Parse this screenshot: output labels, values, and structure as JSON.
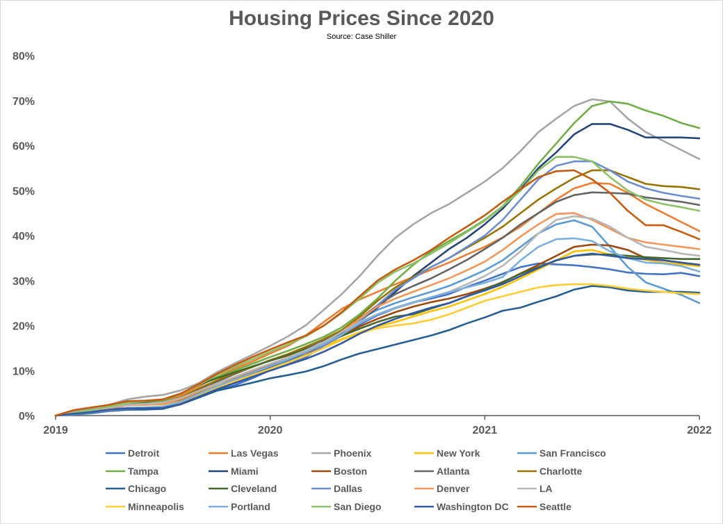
{
  "chart_data": {
    "type": "line",
    "title": "Housing Prices Since 2020",
    "subtitle": "Source: Case Shiller",
    "xlabel": "",
    "ylabel": "",
    "x_ticks": [
      "2019",
      "2020",
      "2021",
      "2022"
    ],
    "y_ticks": [
      "0%",
      "10%",
      "20%",
      "30%",
      "40%",
      "50%",
      "60%",
      "70%",
      "80%"
    ],
    "ylim": [
      0,
      80
    ],
    "xlim": [
      0,
      36
    ],
    "grid": false,
    "legend_position": "bottom",
    "series": [
      {
        "name": "Detroit",
        "color": "#4472c4",
        "values": [
          0,
          0.4,
          0.8,
          1.4,
          1.7,
          1.5,
          1.6,
          2.5,
          4.2,
          5.6,
          6.7,
          8.3,
          10.1,
          11.6,
          13.0,
          15.5,
          17.8,
          20.2,
          22.3,
          23.8,
          25.1,
          26.0,
          27.0,
          28.6,
          30.0,
          31.5,
          33.0,
          33.8,
          33.6,
          33.4,
          33.0,
          32.5,
          31.8,
          31.5,
          31.4,
          31.7,
          31.0
        ]
      },
      {
        "name": "Las Vegas",
        "color": "#ed7d31",
        "values": [
          0,
          1.0,
          1.6,
          2.2,
          2.7,
          2.9,
          3.2,
          4.4,
          6.5,
          8.5,
          10.4,
          12.0,
          13.8,
          15.5,
          17.8,
          20.8,
          23.7,
          25.8,
          27.5,
          29.2,
          30.8,
          32.4,
          34.0,
          35.8,
          37.5,
          39.6,
          42.0,
          45.0,
          48.0,
          50.5,
          51.7,
          51.5,
          49.5,
          47.0,
          45.0,
          43.0,
          41.0
        ]
      },
      {
        "name": "Phoenix",
        "color": "#a5a5a5",
        "values": [
          0,
          1.0,
          1.6,
          2.4,
          3.6,
          4.2,
          4.6,
          5.6,
          7.2,
          9.6,
          11.6,
          13.5,
          15.5,
          17.6,
          20.1,
          23.5,
          27.0,
          31.0,
          35.5,
          39.5,
          42.5,
          45.0,
          47.0,
          49.5,
          52.0,
          55.0,
          58.8,
          63.0,
          66.0,
          68.8,
          70.3,
          69.8,
          66.0,
          63.0,
          61.0,
          59.0,
          57.0
        ]
      },
      {
        "name": "New York",
        "color": "#ffc000",
        "values": [
          0,
          0.6,
          1.2,
          2.0,
          2.4,
          2.5,
          2.5,
          3.5,
          5.0,
          6.5,
          7.8,
          9.0,
          10.5,
          11.8,
          13.5,
          15.5,
          17.0,
          18.5,
          19.8,
          20.8,
          22.0,
          23.2,
          24.2,
          25.6,
          27.0,
          28.6,
          30.5,
          32.5,
          34.5,
          36.5,
          36.8,
          35.8,
          35.2,
          34.6,
          34.0,
          33.6,
          33.2
        ]
      },
      {
        "name": "San Francisco",
        "color": "#5b9bd5",
        "values": [
          0,
          0.2,
          0.5,
          1.0,
          1.3,
          1.3,
          1.5,
          2.8,
          4.5,
          6.0,
          7.4,
          8.8,
          10.5,
          12.0,
          14.0,
          16.5,
          19.0,
          21.5,
          23.5,
          25.0,
          26.3,
          27.5,
          28.8,
          30.5,
          32.3,
          34.5,
          37.5,
          40.5,
          42.5,
          43.4,
          42.0,
          37.5,
          33.0,
          29.6,
          28.2,
          26.8,
          25.0
        ]
      },
      {
        "name": "Tampa",
        "color": "#70ad47",
        "values": [
          0,
          0.5,
          1.0,
          1.8,
          2.8,
          3.0,
          3.3,
          4.8,
          6.8,
          8.5,
          10.0,
          11.5,
          13.0,
          14.4,
          15.9,
          17.5,
          19.6,
          22.5,
          26.0,
          30.0,
          33.5,
          36.5,
          38.8,
          41.0,
          43.5,
          46.5,
          51.0,
          56.0,
          60.5,
          65.0,
          68.8,
          69.8,
          69.3,
          67.8,
          66.6,
          65.0,
          63.9
        ]
      },
      {
        "name": "Miami",
        "color": "#264478",
        "values": [
          0,
          0.4,
          0.8,
          1.3,
          1.7,
          1.8,
          2.0,
          3.0,
          4.7,
          6.4,
          7.8,
          9.3,
          10.9,
          12.4,
          14.0,
          16.0,
          18.2,
          21.0,
          24.0,
          27.5,
          31.0,
          34.0,
          37.0,
          39.5,
          42.5,
          46.0,
          50.3,
          55.0,
          58.5,
          62.5,
          64.8,
          64.8,
          63.5,
          61.8,
          61.8,
          61.8,
          61.6
        ]
      },
      {
        "name": "Boston",
        "color": "#9e480e",
        "values": [
          0,
          0.6,
          1.2,
          1.8,
          2.3,
          2.4,
          2.6,
          3.6,
          5.3,
          7.0,
          8.4,
          9.7,
          11.1,
          12.5,
          14.0,
          15.6,
          17.8,
          19.8,
          21.5,
          23.0,
          24.2,
          25.2,
          26.0,
          27.0,
          28.2,
          29.6,
          31.6,
          33.5,
          35.5,
          37.5,
          38.0,
          37.8,
          36.8,
          35.0,
          34.5,
          34.0,
          33.5
        ]
      },
      {
        "name": "Atlanta",
        "color": "#636363",
        "values": [
          0,
          0.5,
          1.0,
          1.6,
          2.3,
          2.5,
          2.7,
          3.8,
          5.7,
          7.5,
          9.2,
          10.8,
          12.3,
          13.6,
          15.1,
          16.8,
          18.8,
          21.5,
          24.5,
          27.0,
          28.8,
          30.5,
          32.5,
          34.6,
          37.0,
          39.5,
          42.5,
          45.0,
          47.5,
          49.0,
          49.6,
          49.5,
          49.3,
          48.5,
          48.0,
          47.5,
          46.8
        ]
      },
      {
        "name": "Charlotte",
        "color": "#997300",
        "values": [
          0,
          0.5,
          1.1,
          1.7,
          2.4,
          2.6,
          2.9,
          4.0,
          6.0,
          7.8,
          9.4,
          10.8,
          12.3,
          13.7,
          15.3,
          17.0,
          19.0,
          22.0,
          25.5,
          28.5,
          30.8,
          33.0,
          35.0,
          37.3,
          39.5,
          42.0,
          45.0,
          48.0,
          50.5,
          52.8,
          54.5,
          54.5,
          53.0,
          51.5,
          51.0,
          50.8,
          50.3
        ]
      },
      {
        "name": "Chicago",
        "color": "#255e91",
        "values": [
          0,
          0.3,
          0.6,
          1.0,
          1.3,
          1.4,
          1.5,
          2.5,
          4.0,
          5.5,
          6.4,
          7.3,
          8.3,
          9.0,
          9.8,
          11.0,
          12.5,
          13.8,
          14.8,
          15.8,
          16.8,
          17.8,
          19.0,
          20.5,
          21.8,
          23.3,
          24.0,
          25.3,
          26.5,
          28.0,
          28.8,
          28.5,
          27.8,
          27.5,
          27.5,
          27.5,
          27.3
        ]
      },
      {
        "name": "Cleveland",
        "color": "#43682b",
        "values": [
          0,
          0.5,
          1.0,
          1.6,
          2.5,
          3.0,
          3.6,
          4.9,
          6.8,
          8.3,
          9.6,
          10.9,
          12.2,
          13.4,
          14.8,
          16.2,
          17.7,
          19.3,
          20.8,
          22.0,
          22.5,
          23.8,
          25.0,
          26.5,
          28.0,
          29.7,
          31.5,
          33.0,
          34.5,
          35.5,
          35.8,
          35.8,
          35.5,
          35.2,
          35.0,
          34.8,
          34.8
        ]
      },
      {
        "name": "Dallas",
        "color": "#698ed0",
        "values": [
          0,
          0.3,
          0.7,
          1.1,
          1.5,
          1.6,
          1.8,
          2.9,
          4.6,
          6.2,
          7.6,
          9.0,
          10.4,
          11.8,
          13.4,
          15.5,
          17.9,
          21.0,
          24.5,
          28.0,
          30.5,
          33.0,
          35.0,
          37.5,
          40.0,
          43.5,
          48.0,
          52.5,
          55.5,
          56.5,
          56.5,
          54.5,
          52.0,
          50.5,
          49.5,
          48.8,
          48.2
        ]
      },
      {
        "name": "Denver",
        "color": "#f1975a",
        "values": [
          0,
          0.5,
          1.1,
          1.7,
          2.3,
          2.4,
          2.6,
          3.7,
          5.4,
          7.0,
          8.5,
          10.0,
          11.5,
          13.0,
          14.5,
          16.3,
          18.6,
          21.5,
          24.2,
          26.0,
          27.5,
          29.0,
          30.5,
          32.3,
          34.2,
          36.8,
          39.8,
          42.5,
          44.8,
          45.0,
          43.5,
          41.5,
          39.5,
          38.5,
          38.0,
          37.5,
          37.0
        ]
      },
      {
        "name": "LA",
        "color": "#b7b7b7",
        "values": [
          0,
          0.6,
          1.2,
          1.8,
          2.4,
          2.6,
          2.9,
          3.9,
          5.5,
          7.1,
          8.6,
          10.1,
          11.5,
          12.9,
          14.5,
          16.3,
          18.6,
          20.8,
          22.5,
          23.8,
          25.0,
          26.3,
          27.5,
          29.2,
          31.0,
          33.3,
          36.5,
          40.5,
          43.5,
          44.3,
          43.8,
          42.0,
          39.5,
          37.5,
          36.8,
          36.0,
          35.5
        ]
      },
      {
        "name": "Minneapolis",
        "color": "#ffcd33",
        "values": [
          0,
          0.4,
          0.8,
          1.3,
          1.7,
          1.8,
          2.0,
          3.0,
          4.6,
          6.2,
          7.6,
          9.0,
          10.4,
          11.8,
          13.3,
          15.0,
          16.8,
          18.3,
          19.4,
          20.0,
          20.5,
          21.3,
          22.5,
          24.0,
          25.5,
          26.5,
          27.5,
          28.5,
          29.0,
          29.2,
          29.2,
          28.8,
          28.2,
          27.8,
          27.5,
          27.2,
          27.0
        ]
      },
      {
        "name": "Portland",
        "color": "#7cafdd",
        "values": [
          0,
          0.4,
          0.8,
          1.3,
          1.7,
          1.8,
          2.0,
          3.1,
          4.8,
          6.5,
          8.0,
          9.5,
          11.0,
          12.5,
          14.1,
          15.9,
          18.0,
          20.5,
          22.5,
          24.0,
          25.2,
          26.3,
          27.4,
          28.5,
          29.5,
          30.8,
          34.5,
          37.5,
          39.2,
          39.4,
          38.8,
          36.5,
          35.0,
          34.0,
          33.8,
          33.2,
          32.0
        ]
      },
      {
        "name": "San Diego",
        "color": "#8cc168",
        "values": [
          0,
          0.6,
          1.3,
          2.0,
          2.8,
          3.2,
          3.6,
          4.8,
          6.8,
          9.0,
          10.8,
          12.5,
          14.2,
          15.8,
          17.6,
          20.0,
          22.8,
          26.0,
          29.5,
          32.0,
          33.8,
          36.0,
          38.3,
          40.8,
          43.3,
          46.5,
          50.0,
          54.5,
          57.5,
          57.5,
          56.5,
          53.0,
          50.0,
          48.0,
          47.0,
          46.3,
          45.5
        ]
      },
      {
        "name": "Washington DC",
        "color": "#335aa1",
        "values": [
          0,
          0.4,
          0.8,
          1.3,
          1.6,
          1.6,
          1.7,
          2.6,
          4.2,
          5.8,
          7.2,
          8.6,
          10.0,
          11.3,
          12.6,
          14.2,
          16.1,
          18.2,
          20.0,
          21.5,
          22.8,
          24.0,
          25.0,
          26.5,
          27.8,
          29.2,
          31.0,
          32.8,
          34.5,
          35.5,
          36.0,
          35.5,
          35.0,
          34.8,
          34.5,
          34.0,
          33.5
        ]
      },
      {
        "name": "Seattle",
        "color": "#c55a11",
        "values": [
          0,
          1.2,
          1.8,
          2.4,
          3.2,
          3.3,
          3.6,
          4.9,
          7.0,
          9.2,
          11.2,
          13.0,
          14.7,
          16.3,
          17.8,
          20.0,
          23.0,
          26.5,
          30.0,
          32.5,
          34.5,
          36.8,
          39.5,
          42.0,
          44.5,
          47.5,
          50.3,
          53.0,
          54.3,
          54.5,
          52.5,
          49.5,
          45.5,
          42.3,
          42.3,
          40.8,
          39.2
        ]
      }
    ]
  }
}
